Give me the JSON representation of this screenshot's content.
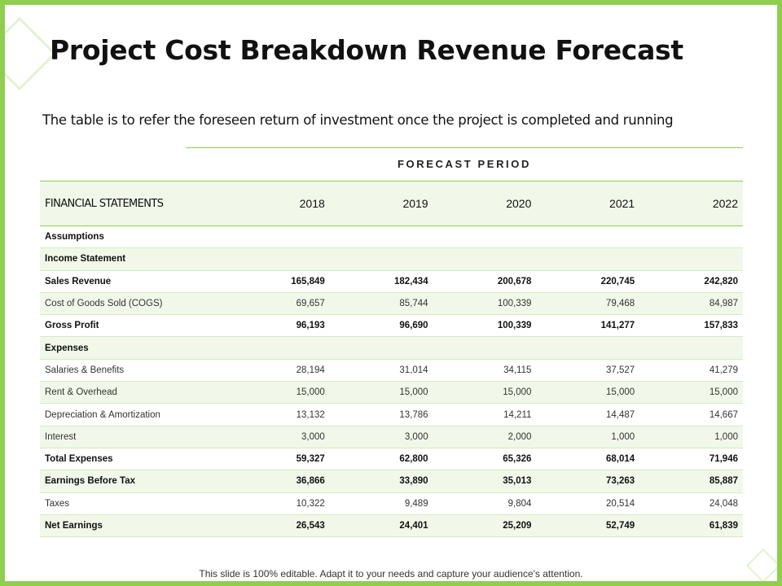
{
  "title": "Project Cost Breakdown Revenue Forecast",
  "subtitle": "The table is to refer the foreseen return of investment once the project is completed and running",
  "forecast_period_label": "FORECAST PERIOD",
  "table": {
    "header_label": "FINANCIAL STATEMENTS",
    "years": [
      "2018",
      "2019",
      "2020",
      "2021",
      "2022"
    ],
    "rows": [
      {
        "label": "Assumptions",
        "values": [
          "",
          "",
          "",
          "",
          ""
        ],
        "bold": true,
        "shaded": false
      },
      {
        "label": "Income Statement",
        "values": [
          "",
          "",
          "",
          "",
          ""
        ],
        "bold": true,
        "shaded": true
      },
      {
        "label": "Sales Revenue",
        "values": [
          "165,849",
          "182,434",
          "200,678",
          "220,745",
          "242,820"
        ],
        "bold": true,
        "shaded": false
      },
      {
        "label": "Cost of Goods Sold (COGS)",
        "values": [
          "69,657",
          "85,744",
          "100,339",
          "79,468",
          "84,987"
        ],
        "bold": false,
        "shaded": true
      },
      {
        "label": "Gross Profit",
        "values": [
          "96,193",
          "96,690",
          "100,339",
          "141,277",
          "157,833"
        ],
        "bold": true,
        "shaded": false
      },
      {
        "label": "Expenses",
        "values": [
          "",
          "",
          "",
          "",
          ""
        ],
        "bold": true,
        "shaded": true
      },
      {
        "label": "Salaries & Benefits",
        "values": [
          "28,194",
          "31,014",
          "34,115",
          "37,527",
          "41,279"
        ],
        "bold": false,
        "shaded": false
      },
      {
        "label": "Rent & Overhead",
        "values": [
          "15,000",
          "15,000",
          "15,000",
          "15,000",
          "15,000"
        ],
        "bold": false,
        "shaded": true
      },
      {
        "label": "Depreciation & Amortization",
        "values": [
          "13,132",
          "13,786",
          "14,211",
          "14,487",
          "14,667"
        ],
        "bold": false,
        "shaded": false
      },
      {
        "label": "Interest",
        "values": [
          "3,000",
          "3,000",
          "2,000",
          "1,000",
          "1,000"
        ],
        "bold": false,
        "shaded": true
      },
      {
        "label": "Total Expenses",
        "values": [
          "59,327",
          "62,800",
          "65,326",
          "68,014",
          "71,946"
        ],
        "bold": true,
        "shaded": false
      },
      {
        "label": "Earnings Before Tax",
        "values": [
          "36,866",
          "33,890",
          "35,013",
          "73,263",
          "85,887"
        ],
        "bold": true,
        "shaded": true
      },
      {
        "label": "Taxes",
        "values": [
          "10,322",
          "9,489",
          "9,804",
          "20,514",
          "24,048"
        ],
        "bold": false,
        "shaded": false
      },
      {
        "label": "Net Earnings",
        "values": [
          "26,543",
          "24,401",
          "25,209",
          "52,749",
          "61,839"
        ],
        "bold": true,
        "shaded": true
      }
    ]
  },
  "footer": "This slide is 100% editable. Adapt it to your needs and capture your audience's attention.",
  "colors": {
    "border_green": "#8fce4e",
    "shade_green": "#f1f8e9",
    "deco_green": "#e3f2d2"
  }
}
